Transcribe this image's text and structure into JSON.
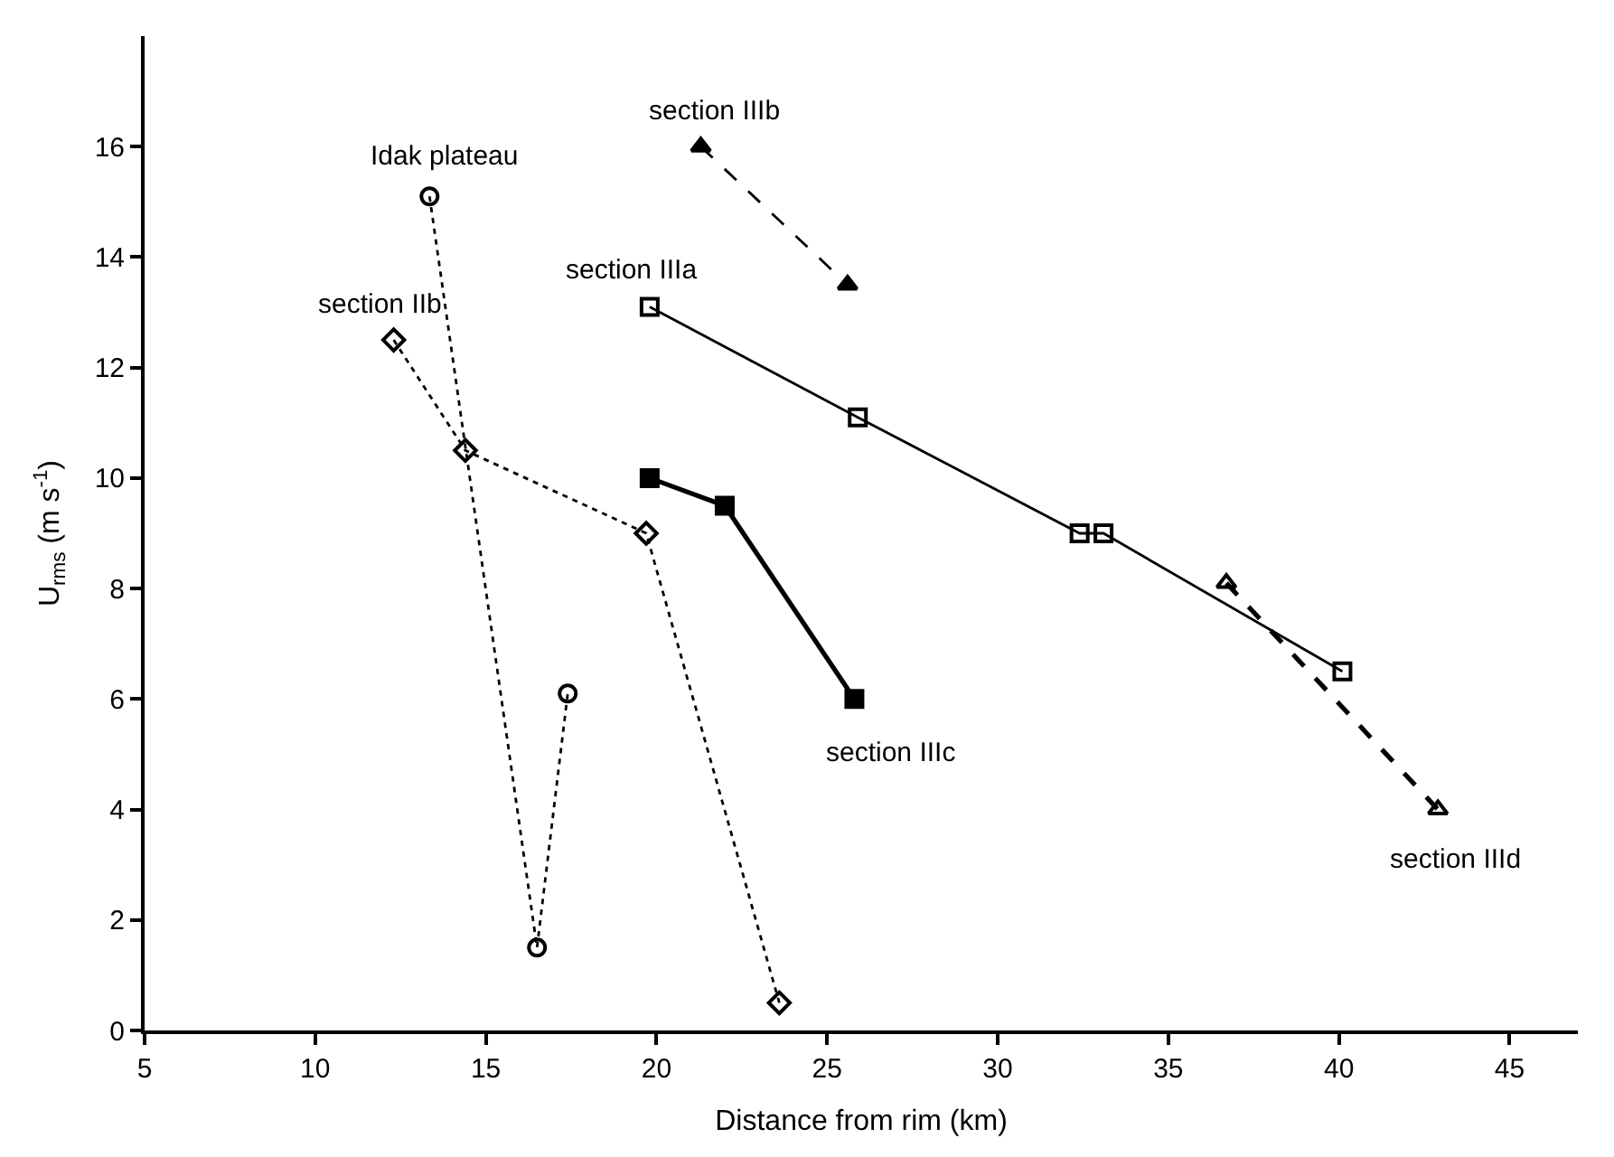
{
  "chart_data": {
    "type": "line",
    "xlabel": "Distance from rim (km)",
    "ylabel": "U$_{rms}$ (m s$^{-1}$)",
    "xlim": [
      5,
      47
    ],
    "xticks": [
      5,
      10,
      15,
      20,
      25,
      30,
      35,
      40,
      45
    ],
    "ylim": [
      0,
      18
    ],
    "yticks": [
      0,
      2,
      4,
      6,
      8,
      10,
      12,
      14,
      16
    ],
    "series": [
      {
        "color": "#000000",
        "marker": "circle-open",
        "line_style": "dotted",
        "x": [
          13.35,
          16.5,
          17.4
        ],
        "values": [
          15.1,
          1.5,
          6.1
        ]
      },
      {
        "color": "#000000",
        "marker": "diamond-open",
        "line_style": "dotted",
        "x": [
          12.3,
          14.4,
          19.7,
          23.6
        ],
        "values": [
          12.5,
          10.5,
          9.0,
          0.5
        ]
      },
      {
        "color": "#000000",
        "marker": "square-open",
        "line_style": "solid",
        "x": [
          19.8,
          25.9,
          32.4,
          33.1,
          40.1
        ],
        "values": [
          13.1,
          11.1,
          9.0,
          9.0,
          6.5
        ]
      },
      {
        "color": "#000000",
        "marker": "triangle",
        "line_style": "dashed",
        "x": [
          21.3,
          25.6
        ],
        "values": [
          16.0,
          13.5
        ]
      },
      {
        "color": "#000000",
        "marker": "square",
        "line_style": "solid",
        "x": [
          19.8,
          22.0,
          25.8
        ],
        "values": [
          10.0,
          9.5,
          6.0
        ]
      },
      {
        "color": "#000000",
        "marker": "triangle-open",
        "line_style": "dashed",
        "x": [
          36.7,
          42.9
        ],
        "values": [
          8.1,
          4.0
        ]
      }
    ],
    "annotations": [
      {
        "text": "Idak plateau",
        "x": 13.35,
        "y": 15.1
      },
      {
        "text": "section IIb",
        "x": 12.3,
        "y": 12.5
      },
      {
        "text": "section IIIa",
        "x": 19.8,
        "y": 13.1
      },
      {
        "text": "section IIIb",
        "x": 21.3,
        "y": 16.0
      },
      {
        "text": "section IIIc",
        "x": 25.8,
        "y": 6.0
      },
      {
        "text": "section IIId",
        "x": 42.9,
        "y": 4.0
      }
    ]
  }
}
